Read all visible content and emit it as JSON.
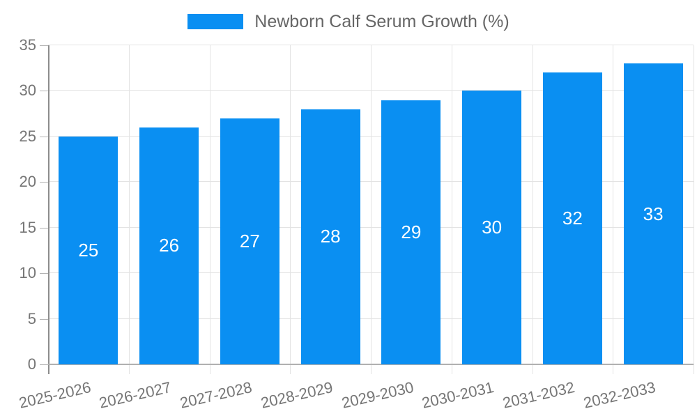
{
  "legend": {
    "label": "Newborn Calf Serum Growth (%)"
  },
  "chart_data": {
    "type": "bar",
    "title": "",
    "categories": [
      "2025-2026",
      "2026-2027",
      "2027-2028",
      "2028-2029",
      "2029-2030",
      "2030-2031",
      "2031-2032",
      "2032-2033"
    ],
    "series": [
      {
        "name": "Newborn Calf Serum Growth (%)",
        "values": [
          25,
          26,
          27,
          28,
          29,
          30,
          32,
          33
        ]
      }
    ],
    "xlabel": "",
    "ylabel": "",
    "ylim": [
      0,
      35
    ],
    "yticks": [
      0,
      5,
      10,
      15,
      20,
      25,
      30,
      35
    ],
    "grid": "horizontal-and-vertical",
    "legend_position": "top-center",
    "value_labels": "inside-center-white"
  },
  "colors": {
    "bar": "#0a8ff2",
    "gridline": "#e3e3e3",
    "y_axis_line": "#8c8c8c",
    "x_axis_line": "#b0b0b0",
    "tick": "#b3b3b3",
    "axis_text": "#757575",
    "legend_text": "#666666",
    "value_text": "#ffffff"
  }
}
